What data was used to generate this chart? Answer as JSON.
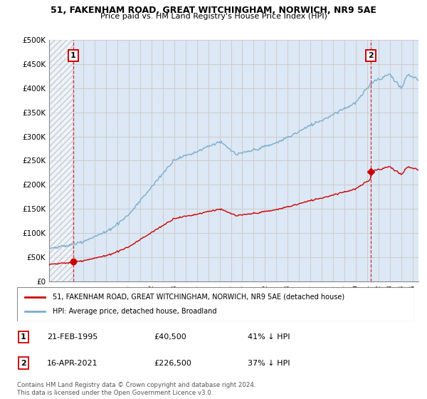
{
  "title": "51, FAKENHAM ROAD, GREAT WITCHINGHAM, NORWICH, NR9 5AE",
  "subtitle": "Price paid vs. HM Land Registry's House Price Index (HPI)",
  "ylabel_ticks": [
    "£0",
    "£50K",
    "£100K",
    "£150K",
    "£200K",
    "£250K",
    "£300K",
    "£350K",
    "£400K",
    "£450K",
    "£500K"
  ],
  "ytick_values": [
    0,
    50000,
    100000,
    150000,
    200000,
    250000,
    300000,
    350000,
    400000,
    450000,
    500000
  ],
  "xlim": [
    1993.0,
    2025.5
  ],
  "ylim": [
    0,
    500000
  ],
  "transaction1": {
    "date_label": "21-FEB-1995",
    "year": 1995.13,
    "price": 40500,
    "label": "1"
  },
  "transaction2": {
    "date_label": "16-APR-2021",
    "year": 2021.29,
    "price": 226500,
    "label": "2"
  },
  "legend_line1": "51, FAKENHAM ROAD, GREAT WITCHINGHAM, NORWICH, NR9 5AE (detached house)",
  "legend_line2": "HPI: Average price, detached house, Broadland",
  "footer": "Contains HM Land Registry data © Crown copyright and database right 2024.\nThis data is licensed under the Open Government Licence v3.0.",
  "red_color": "#cc0000",
  "blue_color": "#7aadcf",
  "grid_color": "#cccccc",
  "bg_color": "#dce8f5"
}
